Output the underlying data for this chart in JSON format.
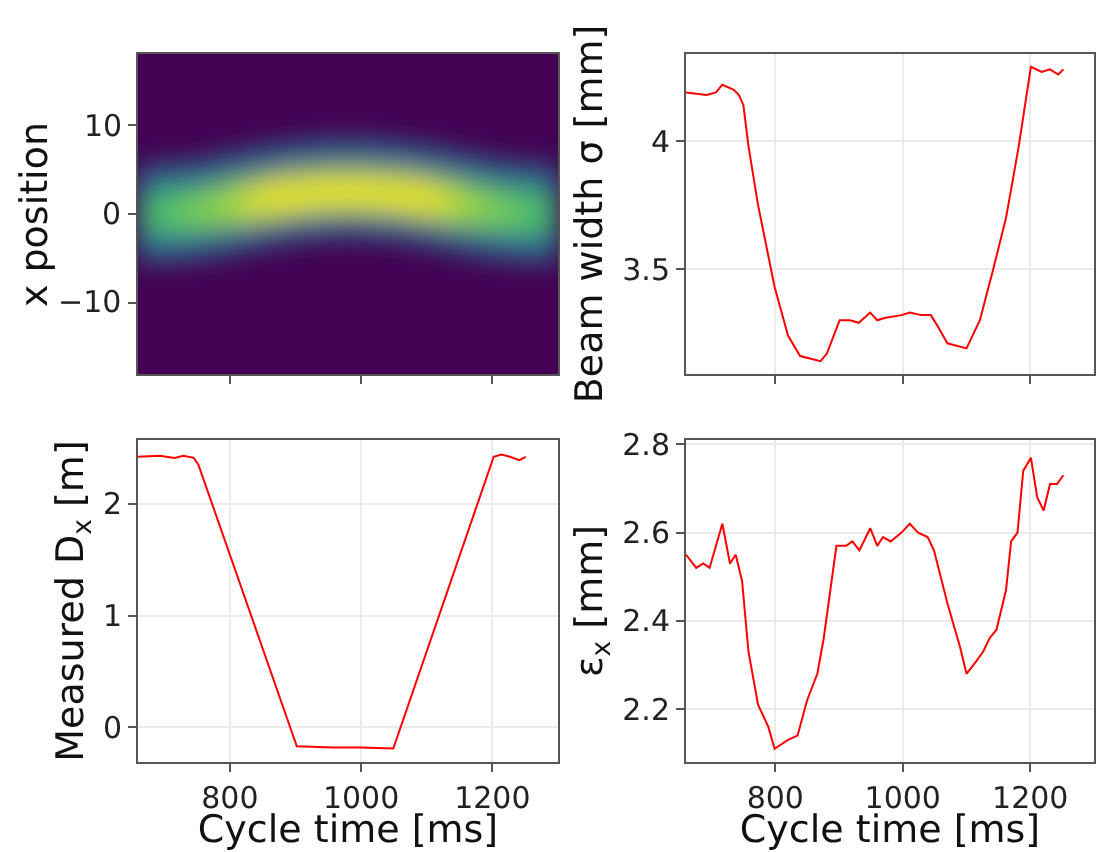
{
  "chart_data": [
    {
      "type": "other",
      "ylabel": "x position",
      "annotations": [
        "10",
        "0",
        "−10"
      ]
    },
    {
      "type": "line",
      "ylabel": "Beam width σ [mm]",
      "grid": true,
      "tick_labels": "y",
      "xlim": [
        660,
        1300
      ],
      "xticks": [
        800,
        1000,
        1200
      ],
      "ylim": [
        3.09,
        4.34
      ],
      "yticks": [
        3.5,
        4.0
      ],
      "x": [
        660,
        692,
        707,
        717,
        735,
        743,
        750,
        758,
        773,
        799,
        820,
        839,
        871,
        881,
        901,
        917,
        931,
        949,
        960,
        973,
        998,
        1011,
        1029,
        1044,
        1054,
        1070,
        1100,
        1121,
        1141,
        1162,
        1182,
        1201,
        1218,
        1231,
        1244,
        1252
      ],
      "series": [
        {
          "color": "#ff0000",
          "values": [
            4.19,
            4.18,
            4.19,
            4.22,
            4.2,
            4.18,
            4.14,
            3.98,
            3.75,
            3.43,
            3.24,
            3.16,
            3.14,
            3.17,
            3.3,
            3.3,
            3.29,
            3.33,
            3.3,
            3.31,
            3.32,
            3.33,
            3.32,
            3.32,
            3.28,
            3.21,
            3.19,
            3.3,
            3.49,
            3.7,
            3.98,
            4.29,
            4.27,
            4.28,
            4.26,
            4.28
          ]
        }
      ]
    },
    {
      "type": "line",
      "ylabel": "Measured D$_{x}$ [m]",
      "xlabel": "Cycle time [ms]",
      "grid": true,
      "xlim": [
        660,
        1300
      ],
      "xticks": [
        800,
        1000,
        1200
      ],
      "ylim": [
        -0.31,
        2.57
      ],
      "yticks": [
        0,
        1,
        2
      ],
      "x": [
        660,
        693,
        716,
        729,
        745,
        752,
        902,
        958,
        998,
        1049,
        1202,
        1214,
        1227,
        1241,
        1251
      ],
      "series": [
        {
          "color": "#ff0000",
          "values": [
            2.42,
            2.43,
            2.41,
            2.43,
            2.41,
            2.35,
            -0.17,
            -0.18,
            -0.18,
            -0.19,
            2.42,
            2.44,
            2.42,
            2.39,
            2.42
          ]
        }
      ]
    },
    {
      "type": "line",
      "ylabel": "ε$_{x}$ [mm]",
      "xlabel": "Cycle time [ms]",
      "grid": true,
      "xlim": [
        660,
        1300
      ],
      "xticks": [
        800,
        1000,
        1200
      ],
      "ylim": [
        2.08,
        2.81
      ],
      "yticks": [
        2.2,
        2.4,
        2.6,
        2.8
      ],
      "x": [
        660,
        676,
        687,
        697,
        717,
        729,
        738,
        748,
        758,
        773,
        789,
        799,
        820,
        835,
        850,
        866,
        876,
        896,
        911,
        921,
        932,
        949,
        960,
        969,
        981,
        998,
        1011,
        1024,
        1039,
        1049,
        1070,
        1090,
        1100,
        1116,
        1126,
        1136,
        1147,
        1162,
        1170,
        1180,
        1189,
        1201,
        1211,
        1221,
        1231,
        1242,
        1252
      ],
      "series": [
        {
          "color": "#ff0000",
          "values": [
            2.55,
            2.52,
            2.53,
            2.52,
            2.62,
            2.53,
            2.55,
            2.49,
            2.33,
            2.21,
            2.16,
            2.11,
            2.13,
            2.14,
            2.22,
            2.28,
            2.36,
            2.57,
            2.57,
            2.58,
            2.56,
            2.61,
            2.57,
            2.59,
            2.58,
            2.6,
            2.62,
            2.6,
            2.59,
            2.56,
            2.44,
            2.34,
            2.28,
            2.31,
            2.33,
            2.36,
            2.38,
            2.47,
            2.58,
            2.6,
            2.74,
            2.77,
            2.68,
            2.65,
            2.71,
            2.71,
            2.73
          ]
        }
      ]
    }
  ]
}
